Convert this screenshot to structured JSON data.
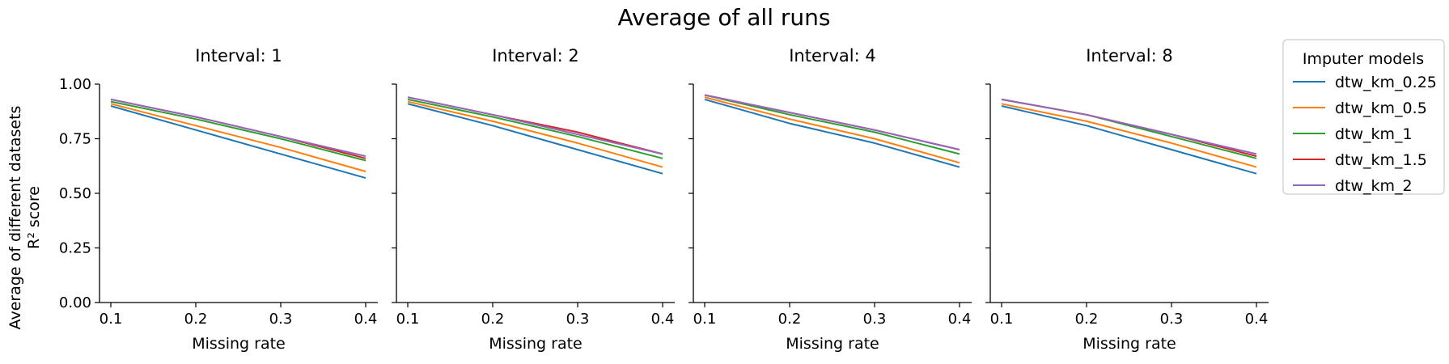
{
  "figure": {
    "title": "Average of all runs",
    "ylabel_line1": "Average of different datasets",
    "ylabel_line2": "R² score"
  },
  "legend": {
    "title": "Imputer models",
    "placement": "right"
  },
  "chart_data": [
    {
      "type": "line",
      "title": "Interval: 1",
      "xlabel": "Missing rate",
      "ylabel": "Average of different datasets R² score",
      "x": [
        0.1,
        0.2,
        0.3,
        0.4
      ],
      "xticks": [
        "0.1",
        "0.2",
        "0.3",
        "0.4"
      ],
      "yticks": [
        "0.00",
        "0.25",
        "0.50",
        "0.75",
        "1.00"
      ],
      "ylim": [
        0,
        1
      ],
      "grid": false,
      "series": [
        {
          "name": "dtw_km_0.25",
          "color": "#1f77b4",
          "values": [
            0.9,
            0.79,
            0.68,
            0.57
          ]
        },
        {
          "name": "dtw_km_0.5",
          "color": "#ff7f0e",
          "values": [
            0.91,
            0.81,
            0.71,
            0.6
          ]
        },
        {
          "name": "dtw_km_1",
          "color": "#2ca02c",
          "values": [
            0.92,
            0.84,
            0.75,
            0.65
          ]
        },
        {
          "name": "dtw_km_1.5",
          "color": "#d62728",
          "values": [
            0.93,
            0.85,
            0.76,
            0.66
          ]
        },
        {
          "name": "dtw_km_2",
          "color": "#9467bd",
          "values": [
            0.93,
            0.85,
            0.76,
            0.67
          ]
        }
      ]
    },
    {
      "type": "line",
      "title": "Interval: 2",
      "xlabel": "Missing rate",
      "x": [
        0.1,
        0.2,
        0.3,
        0.4
      ],
      "xticks": [
        "0.1",
        "0.2",
        "0.3",
        "0.4"
      ],
      "ylim": [
        0,
        1
      ],
      "grid": false,
      "series": [
        {
          "name": "dtw_km_0.25",
          "color": "#1f77b4",
          "values": [
            0.91,
            0.81,
            0.7,
            0.59
          ]
        },
        {
          "name": "dtw_km_0.5",
          "color": "#ff7f0e",
          "values": [
            0.92,
            0.83,
            0.73,
            0.62
          ]
        },
        {
          "name": "dtw_km_1",
          "color": "#2ca02c",
          "values": [
            0.93,
            0.85,
            0.76,
            0.66
          ]
        },
        {
          "name": "dtw_km_1.5",
          "color": "#d62728",
          "values": [
            0.94,
            0.86,
            0.78,
            0.68
          ]
        },
        {
          "name": "dtw_km_2",
          "color": "#9467bd",
          "values": [
            0.94,
            0.86,
            0.77,
            0.68
          ]
        }
      ]
    },
    {
      "type": "line",
      "title": "Interval: 4",
      "xlabel": "Missing rate",
      "x": [
        0.1,
        0.2,
        0.3,
        0.4
      ],
      "xticks": [
        "0.1",
        "0.2",
        "0.3",
        "0.4"
      ],
      "ylim": [
        0,
        1
      ],
      "grid": false,
      "series": [
        {
          "name": "dtw_km_0.25",
          "color": "#1f77b4",
          "values": [
            0.93,
            0.82,
            0.73,
            0.62
          ]
        },
        {
          "name": "dtw_km_0.5",
          "color": "#ff7f0e",
          "values": [
            0.94,
            0.84,
            0.75,
            0.64
          ]
        },
        {
          "name": "dtw_km_1",
          "color": "#2ca02c",
          "values": [
            0.95,
            0.86,
            0.78,
            0.68
          ]
        },
        {
          "name": "dtw_km_1.5",
          "color": "#d62728",
          "values": [
            0.95,
            0.87,
            0.79,
            0.7
          ]
        },
        {
          "name": "dtw_km_2",
          "color": "#9467bd",
          "values": [
            0.95,
            0.87,
            0.79,
            0.7
          ]
        }
      ]
    },
    {
      "type": "line",
      "title": "Interval: 8",
      "xlabel": "Missing rate",
      "x": [
        0.1,
        0.2,
        0.3,
        0.4
      ],
      "xticks": [
        "0.1",
        "0.2",
        "0.3",
        "0.4"
      ],
      "ylim": [
        0,
        1
      ],
      "grid": false,
      "series": [
        {
          "name": "dtw_km_0.25",
          "color": "#1f77b4",
          "values": [
            0.9,
            0.81,
            0.7,
            0.59
          ]
        },
        {
          "name": "dtw_km_0.5",
          "color": "#ff7f0e",
          "values": [
            0.91,
            0.83,
            0.73,
            0.62
          ]
        },
        {
          "name": "dtw_km_1",
          "color": "#2ca02c",
          "values": [
            0.93,
            0.86,
            0.76,
            0.66
          ]
        },
        {
          "name": "dtw_km_1.5",
          "color": "#d62728",
          "values": [
            0.93,
            0.86,
            0.77,
            0.67
          ]
        },
        {
          "name": "dtw_km_2",
          "color": "#9467bd",
          "values": [
            0.93,
            0.86,
            0.77,
            0.68
          ]
        }
      ]
    }
  ]
}
